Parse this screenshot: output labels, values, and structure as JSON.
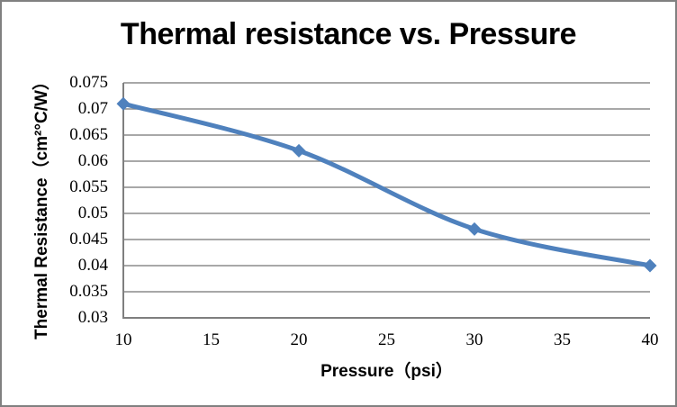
{
  "chart_data": {
    "type": "line",
    "title": "Thermal resistance vs. Pressure",
    "xlabel": "Pressure（psi）",
    "ylabel": "Thermal Resistance（cm²°C/W）",
    "x": [
      10,
      20,
      30,
      40
    ],
    "values": [
      0.071,
      0.062,
      0.047,
      0.04
    ],
    "xlim": [
      10,
      40
    ],
    "ylim": [
      0.03,
      0.075
    ],
    "x_ticks": [
      "10",
      "15",
      "20",
      "25",
      "30",
      "35",
      "40"
    ],
    "y_ticks": [
      "0.075",
      "0.07",
      "0.065",
      "0.06",
      "0.055",
      "0.05",
      "0.045",
      "0.04",
      "0.035",
      "0.03"
    ],
    "grid": "horizontal",
    "smooth_line": true,
    "marker": "diamond",
    "legend_position": "none",
    "colors": {
      "series": "#4F81BD",
      "gridline": "#8C8C8C",
      "axis": "#7F7F7F",
      "frame_border": "#808080",
      "text": "#000000",
      "background": "#FFFFFF"
    }
  }
}
